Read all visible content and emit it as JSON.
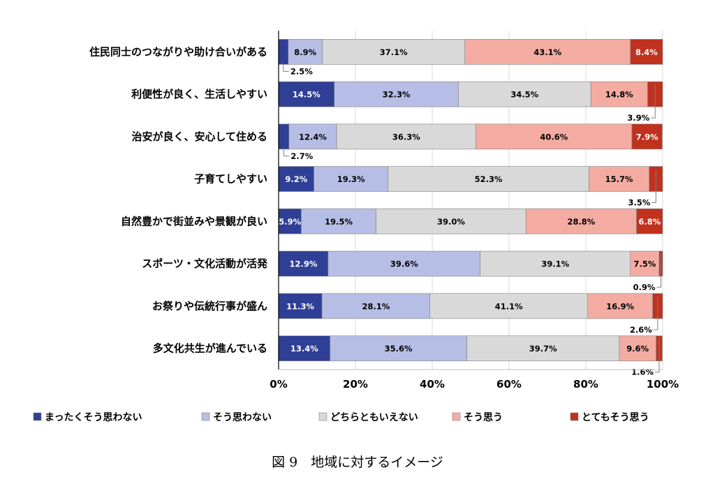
{
  "chart_data": {
    "type": "bar",
    "orientation": "horizontal-stacked-100",
    "categories": [
      "住民同士のつながりや助け合いがある",
      "利便性が良く、生活しやすい",
      "治安が良く、安心して住める",
      "子育てしやすい",
      "自然豊かで街並みや景観が良い",
      "スポーツ・文化活動が活発",
      "お祭りや伝統行事が盛ん",
      "多文化共生が進んでいる"
    ],
    "series": [
      {
        "name": "まったくそう思わない",
        "color": "#2f3f96",
        "label_color": "#ffffff",
        "values": [
          2.5,
          14.5,
          2.7,
          9.2,
          5.9,
          12.9,
          11.3,
          13.4
        ],
        "labels": [
          "2.5%",
          "14.5%",
          "2.7%",
          "9.2%",
          "5.9%",
          "12.9%",
          "11.3%",
          "13.4%"
        ]
      },
      {
        "name": "そう思わない",
        "color": "#b6bee6",
        "label_color": "#000000",
        "values": [
          8.9,
          32.3,
          12.4,
          19.3,
          19.5,
          39.6,
          28.1,
          35.6
        ],
        "labels": [
          "8.9%",
          "32.3%",
          "12.4%",
          "19.3%",
          "19.5%",
          "39.6%",
          "28.1%",
          "35.6%"
        ]
      },
      {
        "name": "どちらともいえない",
        "color": "#d9d9d9",
        "label_color": "#000000",
        "values": [
          37.1,
          34.5,
          36.3,
          52.3,
          39.0,
          39.1,
          41.1,
          39.7
        ],
        "labels": [
          "37.1%",
          "34.5%",
          "36.3%",
          "52.3%",
          "39.0%",
          "39.1%",
          "41.1%",
          "39.7%"
        ]
      },
      {
        "name": "そう思う",
        "color": "#f4aca2",
        "label_color": "#000000",
        "values": [
          43.1,
          14.8,
          40.6,
          15.7,
          28.8,
          7.5,
          16.9,
          9.6
        ],
        "labels": [
          "43.1%",
          "14.8%",
          "40.6%",
          "15.7%",
          "28.8%",
          "7.5%",
          "16.9%",
          "9.6%"
        ]
      },
      {
        "name": "とてもそう思う",
        "color": "#c0321e",
        "label_color": "#ffffff",
        "values": [
          8.4,
          3.9,
          7.9,
          3.5,
          6.8,
          0.9,
          2.6,
          1.6
        ],
        "labels": [
          "8.4%",
          "3.9%",
          "7.9%",
          "3.5%",
          "6.8%",
          "0.9%",
          "2.6%",
          "1.6%"
        ]
      }
    ],
    "xlim": [
      0,
      100
    ],
    "xticks": [
      "0%",
      "20%",
      "40%",
      "60%",
      "80%",
      "100%"
    ],
    "grid": true,
    "legend": "bottom"
  },
  "caption": "図 9　地域に対するイメージ"
}
